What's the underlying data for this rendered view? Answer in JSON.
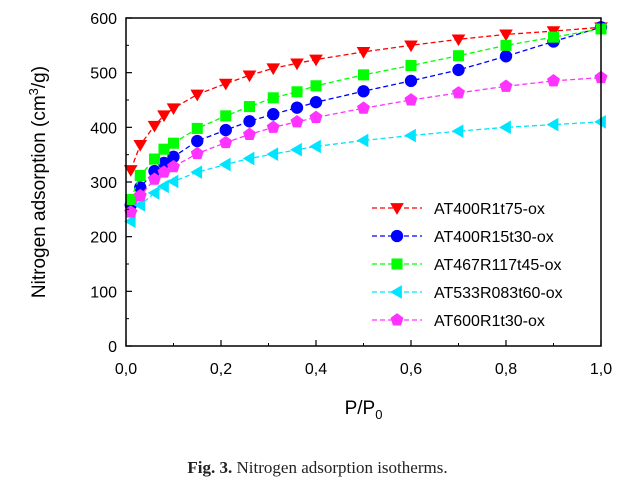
{
  "caption": {
    "label": "Fig. 3.",
    "text": "Nitrogen adsorption isotherms."
  },
  "chart_data": {
    "type": "line",
    "xlabel_main": "P/P",
    "xlabel_sub": "0",
    "ylabel_pre": "Nitrogen adsorption (cm",
    "ylabel_sup": "3",
    "ylabel_post": "/g)",
    "xlim": [
      0,
      1
    ],
    "ylim": [
      0,
      600
    ],
    "x_ticks": [
      "0,0",
      "0,2",
      "0,4",
      "0,6",
      "0,8",
      "1,0"
    ],
    "y_ticks": [
      "0",
      "100",
      "200",
      "300",
      "400",
      "500",
      "600"
    ],
    "grid": false,
    "legend_position": "center-right",
    "series": [
      {
        "name": "AT400R1t75-ox",
        "color": "#ff0000",
        "marker": "triangle-down",
        "x": [
          0.01,
          0.03,
          0.06,
          0.08,
          0.1,
          0.15,
          0.21,
          0.26,
          0.31,
          0.36,
          0.4,
          0.5,
          0.6,
          0.7,
          0.8,
          0.9,
          1.0
        ],
        "y": [
          322,
          368,
          403,
          422,
          435,
          460,
          480,
          495,
          508,
          517,
          524,
          538,
          550,
          561,
          570,
          576,
          583
        ]
      },
      {
        "name": "AT400R15t30-ox",
        "color": "#0000ff",
        "marker": "circle",
        "x": [
          0.01,
          0.03,
          0.06,
          0.08,
          0.1,
          0.15,
          0.21,
          0.26,
          0.31,
          0.36,
          0.4,
          0.5,
          0.6,
          0.7,
          0.8,
          0.9,
          1.0
        ],
        "y": [
          258,
          290,
          320,
          335,
          346,
          375,
          395,
          411,
          424,
          436,
          446,
          466,
          485,
          505,
          530,
          557,
          583
        ]
      },
      {
        "name": "AT467R117t45-ox",
        "color": "#00ff00",
        "marker": "square",
        "x": [
          0.01,
          0.03,
          0.06,
          0.08,
          0.1,
          0.15,
          0.21,
          0.26,
          0.31,
          0.36,
          0.4,
          0.5,
          0.6,
          0.7,
          0.8,
          0.9,
          1.0
        ],
        "y": [
          268,
          312,
          342,
          360,
          371,
          398,
          421,
          438,
          454,
          465,
          476,
          496,
          513,
          531,
          550,
          565,
          580
        ]
      },
      {
        "name": "AT533R083t60-ox",
        "color": "#00e5ff",
        "marker": "triangle-left",
        "x": [
          0.01,
          0.03,
          0.06,
          0.08,
          0.1,
          0.15,
          0.21,
          0.26,
          0.31,
          0.36,
          0.4,
          0.5,
          0.6,
          0.7,
          0.8,
          0.9,
          1.0
        ],
        "y": [
          228,
          258,
          280,
          292,
          301,
          318,
          332,
          343,
          351,
          359,
          365,
          376,
          385,
          393,
          400,
          405,
          410
        ]
      },
      {
        "name": "AT600R1t30-ox",
        "color": "#ff33ff",
        "marker": "pentagon",
        "x": [
          0.01,
          0.03,
          0.06,
          0.08,
          0.1,
          0.15,
          0.21,
          0.26,
          0.31,
          0.36,
          0.4,
          0.5,
          0.6,
          0.7,
          0.8,
          0.9,
          1.0
        ],
        "y": [
          245,
          275,
          305,
          318,
          328,
          352,
          372,
          387,
          400,
          410,
          418,
          435,
          450,
          463,
          475,
          485,
          491
        ]
      }
    ]
  }
}
